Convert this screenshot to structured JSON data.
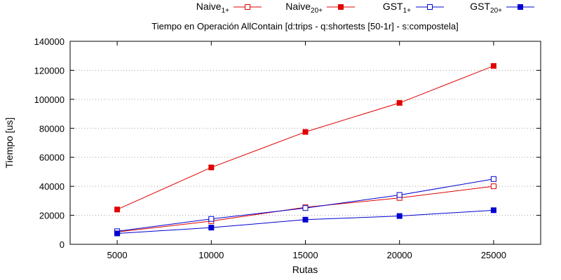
{
  "chart_data": {
    "type": "line",
    "title": "Tiempo en Operación AllContain [d:trips - q:shortests [50-1r] - s:compostela]",
    "xlabel": "Rutas",
    "ylabel": "Tiempo [us]",
    "x": [
      5000,
      10000,
      15000,
      20000,
      25000
    ],
    "xlim": [
      2500,
      27500
    ],
    "ylim": [
      0,
      140000
    ],
    "yticks": [
      0,
      20000,
      40000,
      60000,
      80000,
      100000,
      120000,
      140000
    ],
    "grid": true,
    "legend": "top-right",
    "series": [
      {
        "name": "Naive",
        "subscript": "1+",
        "color": "#e00000",
        "marker": "open-square",
        "values": [
          8500,
          16000,
          25500,
          32000,
          40000
        ]
      },
      {
        "name": "Naive",
        "subscript": "20+",
        "color": "#e00000",
        "marker": "filled-square",
        "values": [
          24000,
          53000,
          77500,
          97500,
          123000
        ]
      },
      {
        "name": "GST",
        "subscript": "1+",
        "color": "#0000d0",
        "marker": "open-square",
        "values": [
          9000,
          17500,
          25000,
          34000,
          45000
        ]
      },
      {
        "name": "GST",
        "subscript": "20+",
        "color": "#0000d0",
        "marker": "filled-square",
        "values": [
          7500,
          11500,
          17000,
          19500,
          23500
        ]
      }
    ]
  }
}
